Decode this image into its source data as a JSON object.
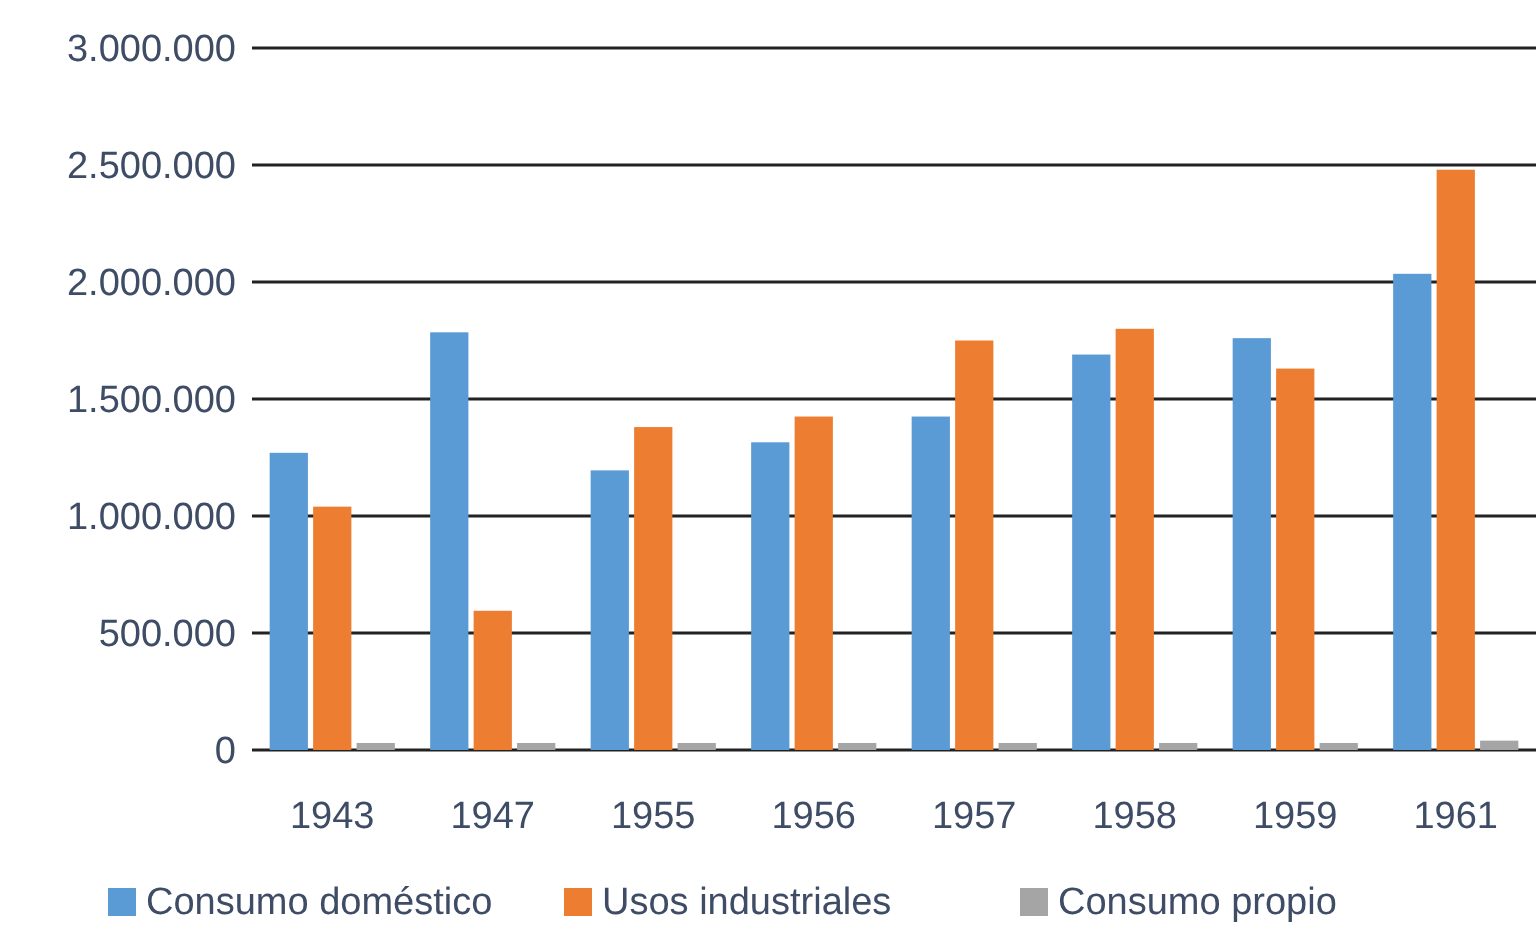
{
  "chart_data": {
    "type": "bar",
    "categories": [
      "1943",
      "1947",
      "1955",
      "1956",
      "1957",
      "1958",
      "1959",
      "1961"
    ],
    "series": [
      {
        "name": "Consumo doméstico",
        "color": "#5b9bd5",
        "values": [
          1270000,
          1785000,
          1195000,
          1315000,
          1425000,
          1690000,
          1760000,
          2035000
        ]
      },
      {
        "name": "Usos industriales",
        "color": "#ed7d31",
        "values": [
          1040000,
          595000,
          1380000,
          1425000,
          1750000,
          1800000,
          1630000,
          2480000
        ]
      },
      {
        "name": "Consumo propio",
        "color": "#a5a5a5",
        "values": [
          30000,
          30000,
          30000,
          30000,
          30000,
          30000,
          30000,
          40000
        ]
      }
    ],
    "ylim": [
      0,
      3000000
    ],
    "yticks": [
      {
        "value": 0,
        "label": "0"
      },
      {
        "value": 500000,
        "label": "500.000"
      },
      {
        "value": 1000000,
        "label": "1.000.000"
      },
      {
        "value": 1500000,
        "label": "1.500.000"
      },
      {
        "value": 2000000,
        "label": "2.000.000"
      },
      {
        "value": 2500000,
        "label": "2.500.000"
      },
      {
        "value": 3000000,
        "label": "3.000.000"
      }
    ],
    "grid": "y",
    "legend": "bottom"
  }
}
